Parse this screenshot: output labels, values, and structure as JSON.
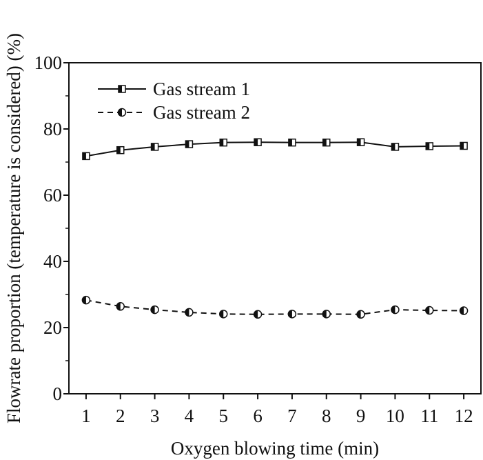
{
  "chart_data": {
    "type": "line",
    "xlabel": "Oxygen blowing time (min)",
    "ylabel": "Flowrate proportion (temperature is considered) (%)",
    "x": [
      1,
      2,
      3,
      4,
      5,
      6,
      7,
      8,
      9,
      10,
      11,
      12
    ],
    "xlim": [
      0.5,
      12.5
    ],
    "ylim": [
      0,
      100
    ],
    "yticks": [
      0,
      20,
      40,
      60,
      80,
      100
    ],
    "grid": false,
    "legend_position": "top-left",
    "series": [
      {
        "name": "Gas stream 1",
        "line_style": "solid",
        "marker": "half-filled-square",
        "values": [
          71.8,
          73.6,
          74.6,
          75.4,
          75.9,
          76.0,
          75.9,
          75.9,
          76.0,
          74.6,
          74.8,
          74.9
        ]
      },
      {
        "name": "Gas stream 2",
        "line_style": "dashed",
        "marker": "half-filled-circle",
        "values": [
          28.3,
          26.4,
          25.4,
          24.6,
          24.1,
          24.0,
          24.1,
          24.1,
          24.0,
          25.4,
          25.2,
          25.1
        ]
      }
    ]
  }
}
